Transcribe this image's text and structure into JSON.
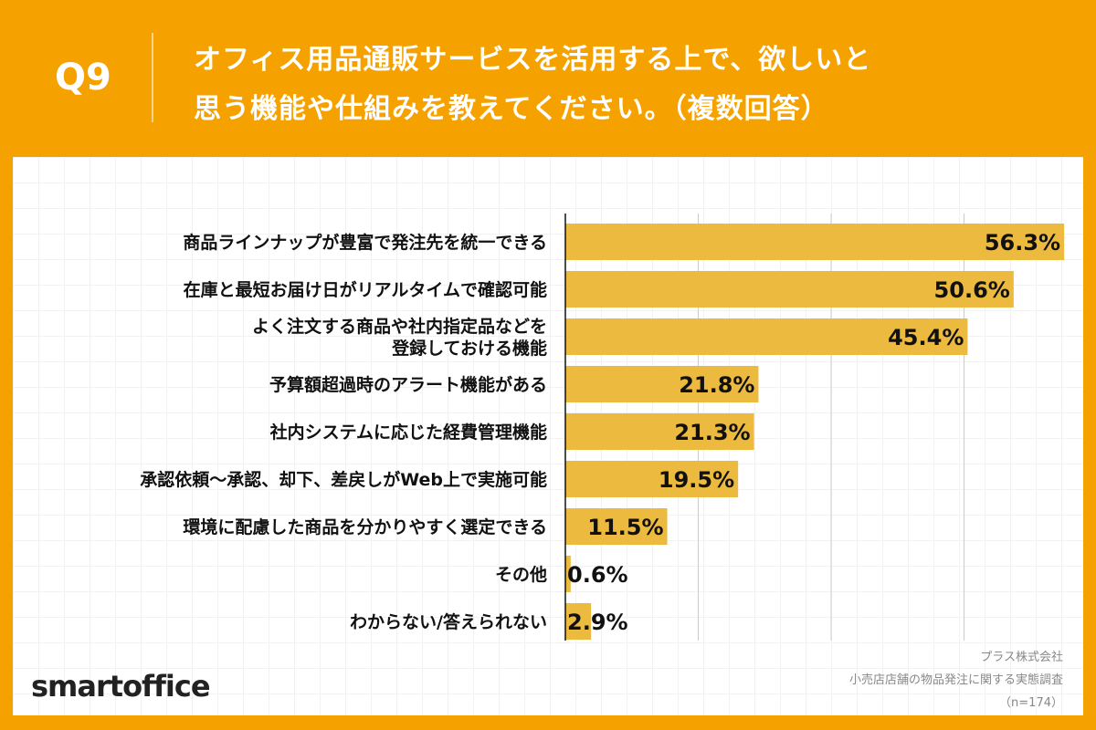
{
  "header": {
    "q": "Q9",
    "title_line1": "オフィス用品通販サービスを活用する上で、欲しいと",
    "title_line2": "思う機能や仕組みを教えてください。（複数回答）"
  },
  "chart_data": {
    "type": "bar",
    "orientation": "horizontal",
    "categories": [
      "商品ラインナップが豊富で発注先を統一できる",
      "在庫と最短お届け日がリアルタイムで確認可能",
      "よく注文する商品や社内指定品などを\n登録しておける機能",
      "予算額超過時のアラート機能がある",
      "社内システムに応じた経費管理機能",
      "承認依頼〜承認、却下、差戻しがWeb上で実施可能",
      "環境に配慮した商品を分かりやすく選定できる",
      "その他",
      "わからない/答えられない"
    ],
    "values": [
      56.3,
      50.6,
      45.4,
      21.8,
      21.3,
      19.5,
      11.5,
      0.6,
      2.9
    ],
    "labels": [
      "56.3%",
      "50.6%",
      "45.4%",
      "21.8%",
      "21.3%",
      "19.5%",
      "11.5%",
      "0.6%",
      "2.9%"
    ],
    "xlim": [
      0,
      56.3
    ],
    "gridlines": [
      15,
      30,
      45
    ],
    "bar_color": "#EBBA3F"
  },
  "footer": {
    "source1": "プラス株式会社",
    "source2": "小売店店舗の物品発注に関する実態調査",
    "n": "（n=174）",
    "logo": "smartoffice"
  }
}
